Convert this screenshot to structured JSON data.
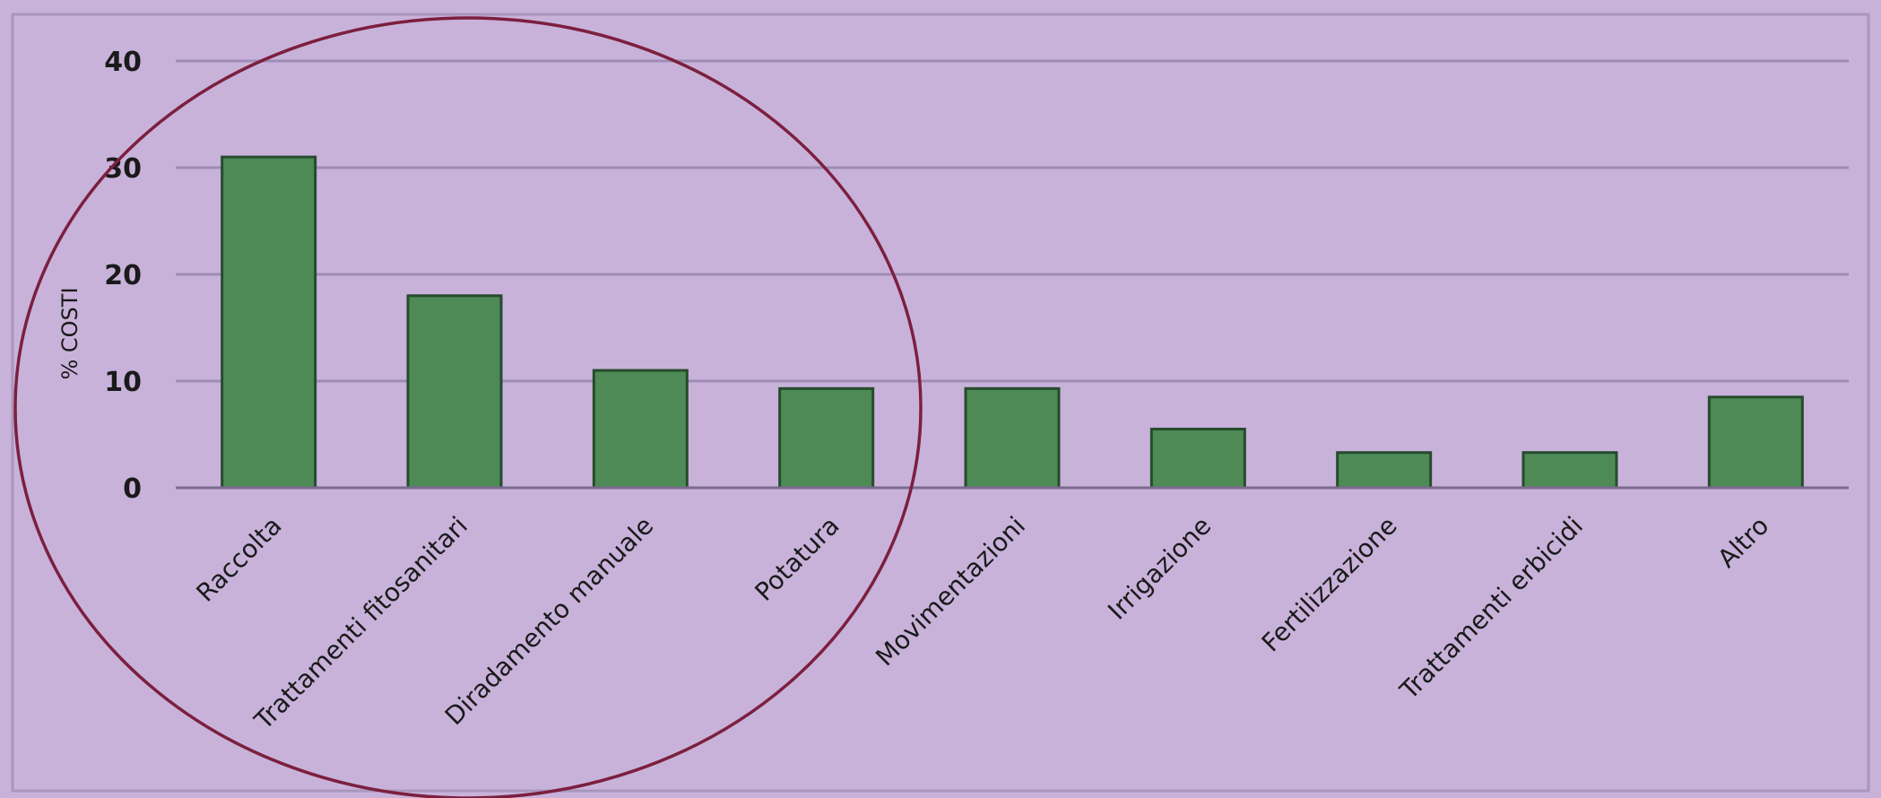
{
  "chart_data": {
    "type": "bar",
    "ylabel": "% COSTI",
    "xlabel": "",
    "ylim": [
      0,
      40
    ],
    "yticks": [
      0,
      10,
      20,
      30,
      40
    ],
    "grid": true,
    "categories": [
      "Raccolta",
      "Trattamenti fitosanitari",
      "Diradamento manuale",
      "Potatura",
      "Movimentazioni",
      "Irrigazione",
      "Fertilizzazione",
      "Trattamenti erbicidi",
      "Altro"
    ],
    "values": [
      31,
      18,
      11,
      9.3,
      9.3,
      5.5,
      3.3,
      3.3,
      8.5
    ],
    "bar_color": "#4d8a55",
    "annotation_color": "#7c1f3e",
    "background_color": "#c8b2da"
  }
}
